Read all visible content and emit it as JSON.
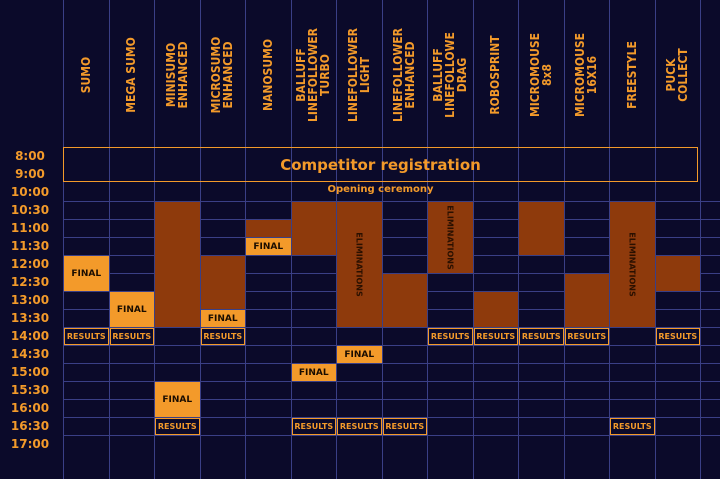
{
  "columns": [
    {
      "label": "SUMO"
    },
    {
      "label": "MEGA SUMO"
    },
    {
      "label": "MINISUMO\nENHANCED"
    },
    {
      "label": "MICROSUMO\nENHANCED"
    },
    {
      "label": "NANOSUMO"
    },
    {
      "label": "BALLUFF\nLINEFOLLOWER\nTURBO"
    },
    {
      "label": "LINEFOLLOWER\nLIGHT"
    },
    {
      "label": "LINEFOLLOWER\nENHANCED"
    },
    {
      "label": "BALLUFF\nLINEFOLLOWE\nDRAG"
    },
    {
      "label": "ROBOSPRINT"
    },
    {
      "label": "MICROMOUSE\n8x8"
    },
    {
      "label": "MICROMOUSE\n16X16"
    },
    {
      "label": "FREESTYLE"
    },
    {
      "label": "PUCK\nCOLLECT"
    }
  ],
  "times": [
    "8:00",
    "9:00",
    "10:00",
    "10:30",
    "11:00",
    "11:30",
    "12:00",
    "12:30",
    "13:00",
    "13:30",
    "14:00",
    "14:30",
    "15:00",
    "15:30",
    "16:00",
    "16:30",
    "17:00"
  ],
  "banner": "Competitor registration",
  "ceremony": "Opening ceremony",
  "labels": {
    "final": "FINAL",
    "results": "RESULTS",
    "eliminations": "ELIMINATIONS"
  },
  "colors": {
    "background": "#0b0a2a",
    "accent": "#f39a2a",
    "block": "#8e3a0c",
    "grid": "#3a3f86"
  },
  "events": [
    {
      "col": 0,
      "start": 6,
      "end": 8,
      "kind": "final"
    },
    {
      "col": 0,
      "start": 10,
      "end": 11,
      "kind": "result"
    },
    {
      "col": 1,
      "start": 8,
      "end": 10,
      "kind": "final"
    },
    {
      "col": 1,
      "start": 10,
      "end": 11,
      "kind": "result"
    },
    {
      "col": 2,
      "start": 3,
      "end": 10,
      "kind": "elim"
    },
    {
      "col": 2,
      "start": 13,
      "end": 15,
      "kind": "final"
    },
    {
      "col": 2,
      "start": 15,
      "end": 16,
      "kind": "result"
    },
    {
      "col": 3,
      "start": 6,
      "end": 9,
      "kind": "elim"
    },
    {
      "col": 3,
      "start": 9,
      "end": 10,
      "kind": "final"
    },
    {
      "col": 3,
      "start": 10,
      "end": 11,
      "kind": "result"
    },
    {
      "col": 4,
      "start": 4,
      "end": 5,
      "kind": "elim"
    },
    {
      "col": 4,
      "start": 5,
      "end": 6,
      "kind": "final"
    },
    {
      "col": 5,
      "start": 3,
      "end": 6,
      "kind": "elim"
    },
    {
      "col": 5,
      "start": 12,
      "end": 13,
      "kind": "final"
    },
    {
      "col": 5,
      "start": 15,
      "end": 16,
      "kind": "result"
    },
    {
      "col": 6,
      "start": 3,
      "end": 10,
      "kind": "elim",
      "text": true
    },
    {
      "col": 6,
      "start": 11,
      "end": 12,
      "kind": "final"
    },
    {
      "col": 6,
      "start": 15,
      "end": 16,
      "kind": "result"
    },
    {
      "col": 7,
      "start": 7,
      "end": 10,
      "kind": "elim"
    },
    {
      "col": 7,
      "start": 15,
      "end": 16,
      "kind": "result"
    },
    {
      "col": 8,
      "start": 3,
      "end": 7,
      "kind": "elim",
      "text": true
    },
    {
      "col": 8,
      "start": 10,
      "end": 11,
      "kind": "result"
    },
    {
      "col": 9,
      "start": 8,
      "end": 10,
      "kind": "elim"
    },
    {
      "col": 9,
      "start": 10,
      "end": 11,
      "kind": "result"
    },
    {
      "col": 10,
      "start": 3,
      "end": 6,
      "kind": "elim"
    },
    {
      "col": 10,
      "start": 10,
      "end": 11,
      "kind": "result"
    },
    {
      "col": 11,
      "start": 7,
      "end": 10,
      "kind": "elim"
    },
    {
      "col": 11,
      "start": 10,
      "end": 11,
      "kind": "result"
    },
    {
      "col": 12,
      "start": 3,
      "end": 10,
      "kind": "elim",
      "text": true
    },
    {
      "col": 12,
      "start": 15,
      "end": 16,
      "kind": "result"
    },
    {
      "col": 13,
      "start": 6,
      "end": 8,
      "kind": "elim"
    },
    {
      "col": 13,
      "start": 10,
      "end": 11,
      "kind": "result"
    }
  ]
}
